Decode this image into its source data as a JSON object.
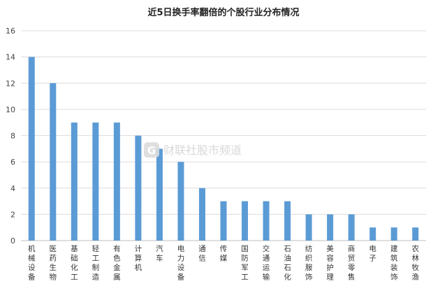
{
  "chart_data": {
    "type": "bar",
    "title": "近5日换手率翻倍的个股行业分布情况",
    "categories": [
      "机械设备",
      "医药生物",
      "基础化工",
      "轻工制造",
      "有色金属",
      "计算机",
      "汽车",
      "电力设备",
      "通信",
      "传媒",
      "国防军工",
      "交通运输",
      "石油石化",
      "纺织服饰",
      "美容护理",
      "商贸零售",
      "电子",
      "建筑装饰",
      "农林牧渔"
    ],
    "values": [
      14,
      12,
      9,
      9,
      9,
      8,
      7,
      6,
      4,
      3,
      3,
      3,
      3,
      2,
      2,
      2,
      1,
      1,
      1
    ],
    "ylim": [
      0,
      16
    ],
    "yticks": [
      0,
      2,
      4,
      6,
      8,
      10,
      12,
      14,
      16
    ],
    "grid": true,
    "bar_color": "#5b9bd5"
  },
  "watermark": {
    "text": "财联社股市频道",
    "logo_letter": "G"
  }
}
